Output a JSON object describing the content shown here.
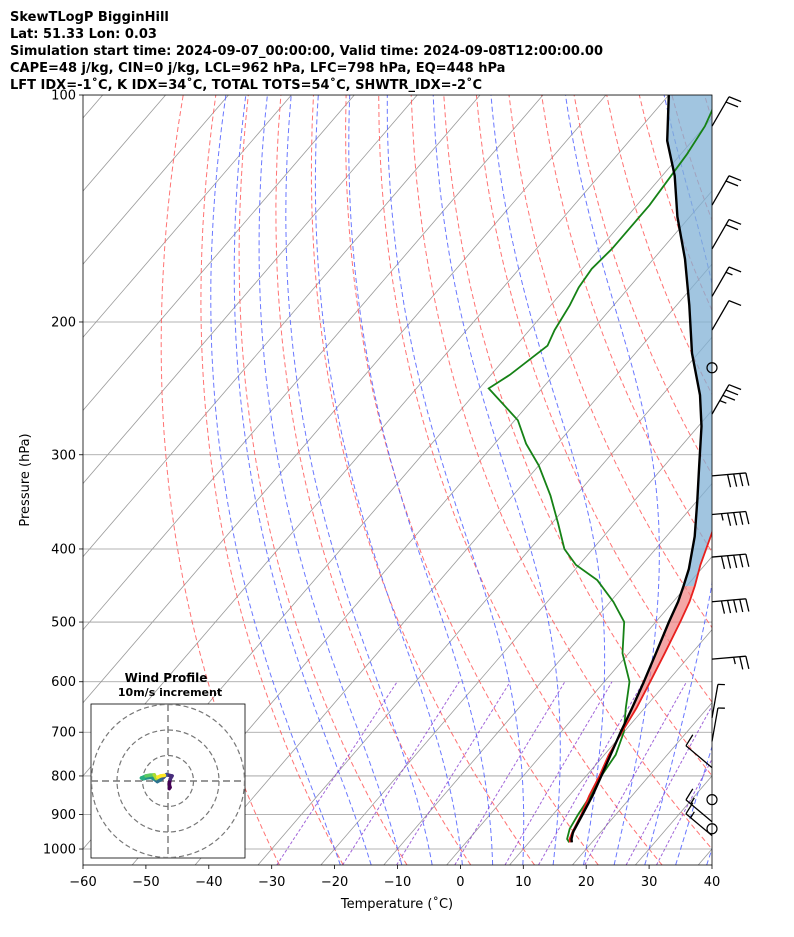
{
  "header": {
    "line1": "SkewTLogP BigginHill",
    "line2": "Lat: 51.33   Lon: 0.03",
    "line3": "Simulation start time: 2024-09-07_00:00:00, Valid time: 2024-09-08T12:00:00.00",
    "line4": "CAPE=48 j/kg, CIN=0 j/kg, LCL=962 hPa, LFC=798 hPa, EQ=448 hPa",
    "line5": "LFT IDX=-1˚C, K IDX=34˚C, TOTAL TOTS=54˚C, SHWTR_IDX=-2˚C"
  },
  "chart_data": {
    "type": "line",
    "subtype": "skew-t log-p",
    "xlabel": "Temperature (˚C)",
    "ylabel": "Pressure (hPa)",
    "xlim": [
      -60,
      40
    ],
    "ylim": [
      1050,
      100
    ],
    "x_ticks": [
      -60,
      -50,
      -40,
      -30,
      -20,
      -10,
      0,
      10,
      20,
      30,
      40
    ],
    "y_ticks": [
      100,
      200,
      300,
      400,
      500,
      600,
      700,
      800,
      900,
      1000
    ],
    "y_scale": "log",
    "grid": true,
    "colors": {
      "temperature": "#e8201e",
      "dewpoint": "#168216",
      "parcel": "#000000",
      "cape_fill": "#82b2d6",
      "cin_fill": "#f08080",
      "dry_adiabats": "#ff5a5a",
      "moist_adiabats": "#5060ff",
      "mixing_ratio": "#8a3ecf",
      "isotherms": "#9a9a9a"
    },
    "series": [
      {
        "name": "temperature",
        "points": [
          [
            16.5,
            980
          ],
          [
            16.0,
            970
          ],
          [
            15.5,
            950
          ],
          [
            14.5,
            900
          ],
          [
            13.2,
            850
          ],
          [
            12.1,
            800
          ],
          [
            10.7,
            750
          ],
          [
            9.7,
            700
          ],
          [
            8.7,
            650
          ],
          [
            7.3,
            600
          ],
          [
            5.7,
            550
          ],
          [
            3.9,
            500
          ],
          [
            2.6,
            470
          ],
          [
            1.3,
            448
          ],
          [
            -0.7,
            420
          ],
          [
            -3.3,
            380
          ],
          [
            -5.5,
            350
          ],
          [
            -9.0,
            310
          ],
          [
            -12.5,
            280
          ],
          [
            -14.5,
            265
          ],
          [
            -16.3,
            258
          ],
          [
            -19.2,
            248
          ],
          [
            -22.5,
            240
          ],
          [
            -25.5,
            225
          ],
          [
            -28.5,
            210
          ],
          [
            -31.8,
            190
          ],
          [
            -35.6,
            170
          ],
          [
            -39.5,
            150
          ],
          [
            -42.2,
            140
          ],
          [
            -45.5,
            130
          ],
          [
            -48.5,
            125
          ],
          [
            -50.5,
            120
          ],
          [
            -53.4,
            110
          ],
          [
            -55.0,
            100
          ]
        ]
      },
      {
        "name": "dewpoint",
        "points": [
          [
            16.4,
            980
          ],
          [
            15.6,
            970
          ],
          [
            14.6,
            940
          ],
          [
            14.0,
            900
          ],
          [
            13.4,
            850
          ],
          [
            12.4,
            800
          ],
          [
            11.8,
            750
          ],
          [
            10.0,
            700
          ],
          [
            7.0,
            650
          ],
          [
            4.0,
            600
          ],
          [
            -1.0,
            550
          ],
          [
            -5.0,
            500
          ],
          [
            -9.5,
            470
          ],
          [
            -15.0,
            440
          ],
          [
            -20.5,
            420
          ],
          [
            -24.5,
            400
          ],
          [
            -29.0,
            370
          ],
          [
            -34.0,
            340
          ],
          [
            -40.0,
            310
          ],
          [
            -45.0,
            290
          ],
          [
            -49.5,
            270
          ],
          [
            -58.5,
            245
          ],
          [
            -57.0,
            235
          ],
          [
            -55.0,
            215
          ],
          [
            -56.0,
            205
          ],
          [
            -57.0,
            190
          ],
          [
            -58.0,
            180
          ],
          [
            -58.5,
            170
          ],
          [
            -58.0,
            160
          ],
          [
            -58.0,
            140
          ],
          [
            -59.0,
            120
          ],
          [
            -60.0,
            110
          ],
          [
            -62.0,
            100
          ]
        ]
      },
      {
        "name": "parcel",
        "points": [
          [
            16.8,
            980
          ],
          [
            16.3,
            970
          ],
          [
            15.6,
            950
          ],
          [
            14.7,
            900
          ],
          [
            13.7,
            850
          ],
          [
            12.4,
            800
          ],
          [
            11.0,
            750
          ],
          [
            9.5,
            700
          ],
          [
            8.0,
            650
          ],
          [
            6.3,
            600
          ],
          [
            4.3,
            550
          ],
          [
            2.1,
            500
          ],
          [
            0.8,
            470
          ],
          [
            -0.5,
            448
          ],
          [
            -2.0,
            425
          ],
          [
            -5.5,
            385
          ],
          [
            -10.0,
            345
          ],
          [
            -14.5,
            310
          ],
          [
            -19.5,
            275
          ],
          [
            -24.0,
            250
          ],
          [
            -31.0,
            220
          ],
          [
            -38.0,
            190
          ],
          [
            -45.0,
            165
          ],
          [
            -52.0,
            145
          ],
          [
            -58.0,
            128
          ],
          [
            -64.0,
            115
          ],
          [
            -70.0,
            100
          ]
        ]
      }
    ],
    "wind_barbs": [
      {
        "pressure": 110,
        "speed_kt": 20
      },
      {
        "pressure": 140,
        "speed_kt": 20
      },
      {
        "pressure": 160,
        "speed_kt": 20
      },
      {
        "pressure": 185,
        "speed_kt": 15
      },
      {
        "pressure": 205,
        "speed_kt": 10
      },
      {
        "pressure": 230,
        "speed_kt": 0
      },
      {
        "pressure": 265,
        "speed_kt": 35
      },
      {
        "pressure": 320,
        "speed_kt": 40
      },
      {
        "pressure": 360,
        "speed_kt": 45
      },
      {
        "pressure": 410,
        "speed_kt": 50
      },
      {
        "pressure": 470,
        "speed_kt": 50
      },
      {
        "pressure": 560,
        "speed_kt": 25
      },
      {
        "pressure": 670,
        "speed_kt": 5
      },
      {
        "pressure": 720,
        "speed_kt": 5
      },
      {
        "pressure": 780,
        "speed_kt": 10
      },
      {
        "pressure": 860,
        "speed_kt": 0
      },
      {
        "pressure": 920,
        "speed_kt": 15
      },
      {
        "pressure": 940,
        "speed_kt": 0
      },
      {
        "pressure": 960,
        "speed_kt": 15
      }
    ],
    "hodograph": {
      "title": "Wind Profile",
      "subtitle": "10m/s increment",
      "rings_ms": [
        10,
        20,
        30
      ],
      "points": [
        [
          0.5,
          -3.0
        ],
        [
          0.8,
          -2.5
        ],
        [
          0.5,
          -1.2
        ],
        [
          0.9,
          0.8
        ],
        [
          1.6,
          2.0
        ],
        [
          -0.6,
          2.5
        ],
        [
          -1.8,
          1.4
        ],
        [
          -2.8,
          0.5
        ],
        [
          -4.2,
          -0.2
        ],
        [
          -5.5,
          0.8
        ],
        [
          -6.6,
          1.4
        ],
        [
          -7.8,
          1.3
        ],
        [
          -9.6,
          0.9
        ],
        [
          -10.4,
          1.2
        ],
        [
          -8.6,
          2.0
        ],
        [
          -7.0,
          2.3
        ],
        [
          -5.4,
          2.4
        ],
        [
          -4.6,
          1.0
        ],
        [
          -4.0,
          1.5
        ],
        [
          -2.8,
          2.0
        ],
        [
          -1.4,
          2.2
        ]
      ]
    }
  }
}
